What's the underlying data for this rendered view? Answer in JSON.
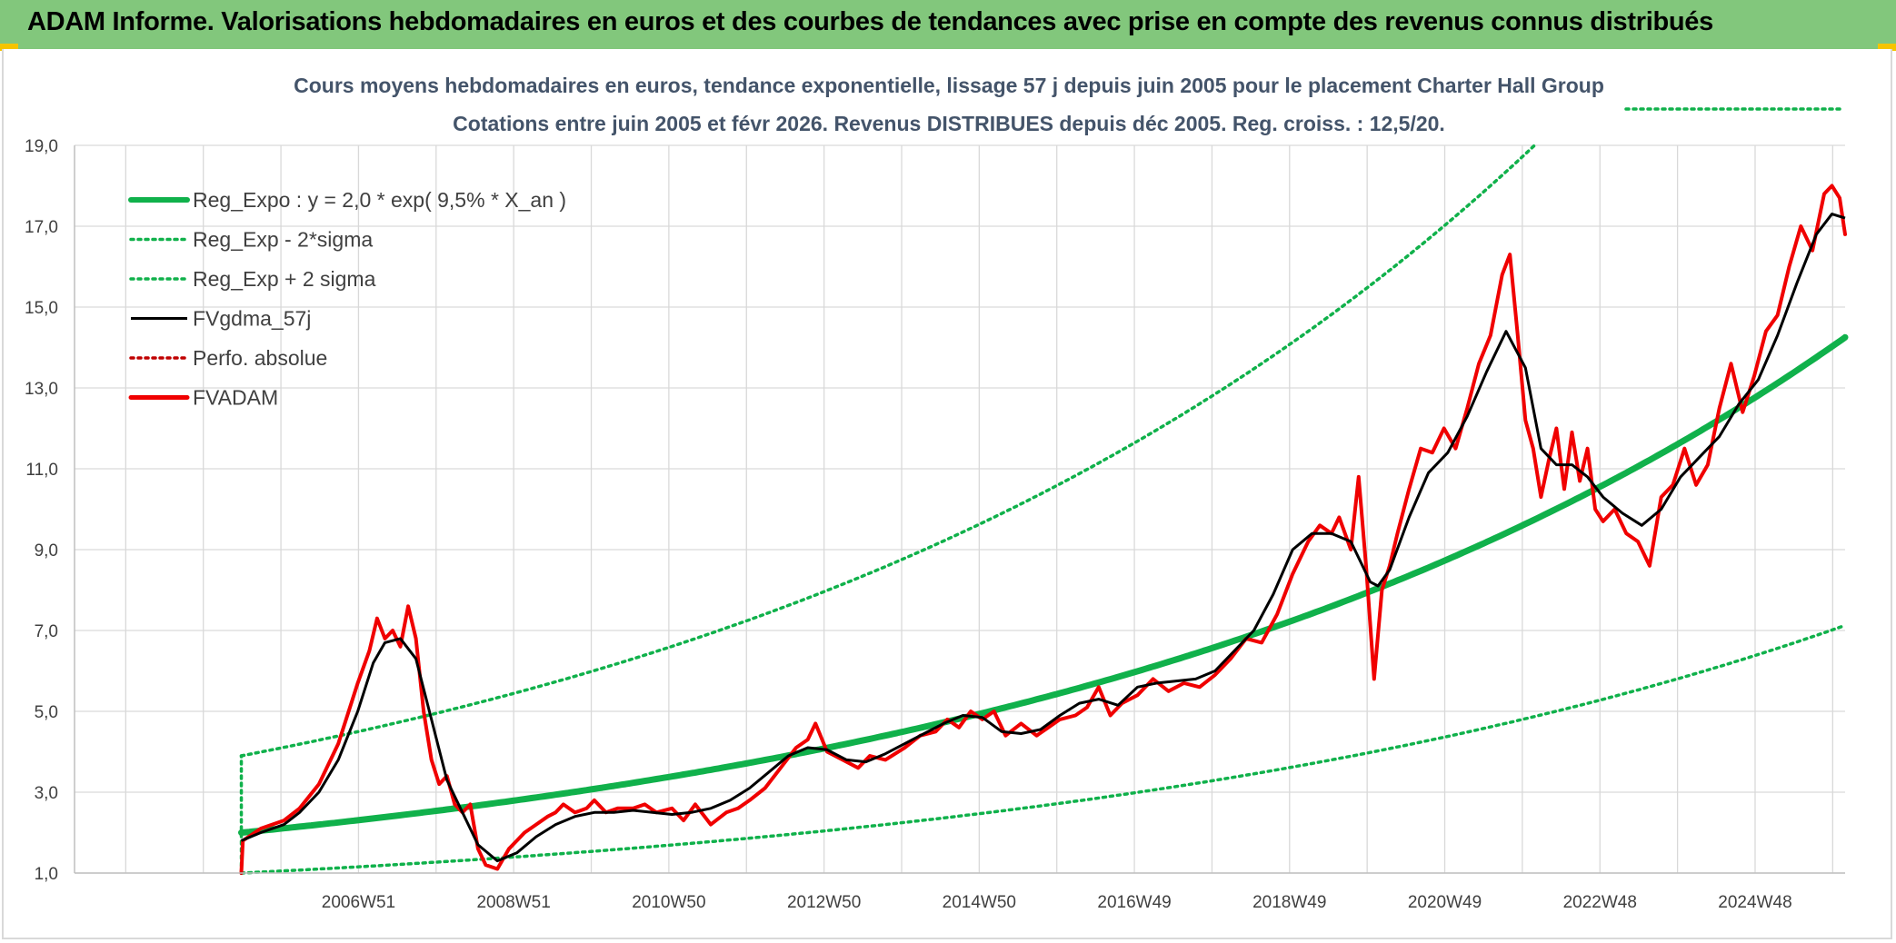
{
  "header": {
    "title": "ADAM Informe. Valorisations hebdomadaires en euros et des courbes de tendances avec prise en compte des revenus connus distribués",
    "color": "#82c77c"
  },
  "chart_data": {
    "type": "line",
    "title": "Cours moyens hebdomadaires en euros, tendance exponentielle, lissage 57 j depuis juin 2005 pour le placement Charter Hall Group",
    "subtitle": "Cotations entre juin 2005 et févr 2026. Revenus DISTRIBUES depuis déc 2005. Reg. croiss. : 12,5/20.",
    "xlabel": "",
    "ylabel": "",
    "ylim": [
      1.0,
      19.0
    ],
    "xlim": [
      2003.3,
      2026.12
    ],
    "grid": true,
    "legend_position": "top-left",
    "y_ticks": [
      "1,0",
      "3,0",
      "5,0",
      "7,0",
      "9,0",
      "11,0",
      "13,0",
      "15,0",
      "17,0",
      "19,0"
    ],
    "y_tick_values": [
      1,
      3,
      5,
      7,
      9,
      11,
      13,
      15,
      17,
      19
    ],
    "x_ticks": [
      "2006W51",
      "2008W51",
      "2010W50",
      "2012W50",
      "2014W50",
      "2016W49",
      "2018W49",
      "2020W49",
      "2022W48",
      "2024W48"
    ],
    "x_tick_years": [
      2006.96,
      2008.96,
      2010.96,
      2012.96,
      2014.96,
      2016.96,
      2018.96,
      2020.96,
      2022.96,
      2024.96
    ],
    "series": [
      {
        "name": "Reg_Expo : y = 2,0 * exp( 9,5% *  X_an )",
        "color": "#10b14b",
        "style": "solid-thick",
        "formula": {
          "a": 2.0,
          "r": 0.095,
          "x0": 2005.45,
          "factor": 1.0
        },
        "x_start": 2005.45,
        "x_end": 2026.12
      },
      {
        "name": "Reg_Exp - 2*sigma",
        "color": "#10b14b",
        "style": "dotted",
        "formula": {
          "a": 2.0,
          "r": 0.095,
          "x0": 2005.45,
          "factor": 0.5
        },
        "x_start": 2005.45,
        "x_end": 2026.12
      },
      {
        "name": "Reg_Exp + 2 sigma",
        "color": "#10b14b",
        "style": "dotted",
        "formula": {
          "a": 2.0,
          "r": 0.095,
          "x0": 2005.45,
          "factor": 1.95
        },
        "x_start": 2005.45,
        "x_end": 2026.12,
        "cap": 19.9
      },
      {
        "name": "FVgdma_57j",
        "color": "#000000",
        "style": "solid",
        "x": [
          2005.45,
          2005.7,
          2006.0,
          2006.2,
          2006.45,
          2006.7,
          2006.95,
          2007.15,
          2007.3,
          2007.5,
          2007.7,
          2007.9,
          2008.1,
          2008.3,
          2008.5,
          2008.75,
          2009.0,
          2009.25,
          2009.5,
          2009.75,
          2010.0,
          2010.25,
          2010.5,
          2010.75,
          2011.0,
          2011.25,
          2011.5,
          2011.75,
          2012.0,
          2012.25,
          2012.5,
          2012.75,
          2013.0,
          2013.25,
          2013.5,
          2013.75,
          2014.0,
          2014.25,
          2014.5,
          2014.75,
          2015.0,
          2015.25,
          2015.5,
          2015.75,
          2016.0,
          2016.25,
          2016.5,
          2016.75,
          2017.0,
          2017.25,
          2017.5,
          2017.75,
          2018.0,
          2018.25,
          2018.5,
          2018.75,
          2019.0,
          2019.25,
          2019.5,
          2019.75,
          2020.0,
          2020.1,
          2020.25,
          2020.5,
          2020.75,
          2021.0,
          2021.25,
          2021.5,
          2021.75,
          2022.0,
          2022.2,
          2022.4,
          2022.6,
          2022.8,
          2023.0,
          2023.25,
          2023.5,
          2023.75,
          2024.0,
          2024.25,
          2024.5,
          2024.75,
          2025.0,
          2025.25,
          2025.5,
          2025.75,
          2025.95,
          2026.12
        ],
        "y": [
          1.8,
          2.0,
          2.2,
          2.5,
          3.0,
          3.8,
          5.0,
          6.2,
          6.7,
          6.8,
          6.3,
          4.8,
          3.3,
          2.5,
          1.7,
          1.3,
          1.5,
          1.9,
          2.2,
          2.4,
          2.5,
          2.5,
          2.55,
          2.5,
          2.45,
          2.5,
          2.6,
          2.8,
          3.1,
          3.5,
          3.9,
          4.1,
          4.05,
          3.8,
          3.75,
          3.95,
          4.2,
          4.45,
          4.7,
          4.9,
          4.85,
          4.5,
          4.45,
          4.55,
          4.9,
          5.2,
          5.3,
          5.15,
          5.6,
          5.7,
          5.75,
          5.8,
          6.0,
          6.5,
          7.0,
          7.9,
          9.0,
          9.4,
          9.4,
          9.2,
          8.2,
          8.1,
          8.5,
          9.8,
          10.9,
          11.4,
          12.3,
          13.4,
          14.4,
          13.5,
          11.5,
          11.1,
          11.1,
          10.8,
          10.3,
          9.9,
          9.6,
          10.0,
          10.8,
          11.3,
          11.8,
          12.6,
          13.2,
          14.3,
          15.6,
          16.8,
          17.3,
          17.2
        ]
      },
      {
        "name": "Perfo. absolue",
        "color": "#c00000",
        "style": "dotted",
        "x": [
          2005.45,
          2005.45
        ],
        "y": [
          1.0,
          1.0
        ]
      },
      {
        "name": "FVADAM",
        "color": "#f00000",
        "style": "solid-thick",
        "x": [
          2005.45,
          2005.47,
          2005.7,
          2006.0,
          2006.2,
          2006.45,
          2006.7,
          2006.95,
          2007.1,
          2007.2,
          2007.3,
          2007.4,
          2007.5,
          2007.6,
          2007.7,
          2007.8,
          2007.9,
          2008.0,
          2008.1,
          2008.2,
          2008.3,
          2008.4,
          2008.5,
          2008.6,
          2008.75,
          2008.9,
          2009.0,
          2009.1,
          2009.25,
          2009.4,
          2009.5,
          2009.6,
          2009.75,
          2009.9,
          2010.0,
          2010.15,
          2010.3,
          2010.5,
          2010.65,
          2010.8,
          2011.0,
          2011.15,
          2011.3,
          2011.5,
          2011.7,
          2011.85,
          2012.0,
          2012.2,
          2012.4,
          2012.6,
          2012.75,
          2012.85,
          2013.0,
          2013.2,
          2013.4,
          2013.55,
          2013.75,
          2014.0,
          2014.2,
          2014.4,
          2014.55,
          2014.7,
          2014.85,
          2015.0,
          2015.15,
          2015.3,
          2015.5,
          2015.7,
          2015.85,
          2016.0,
          2016.2,
          2016.35,
          2016.5,
          2016.65,
          2016.8,
          2017.0,
          2017.2,
          2017.4,
          2017.6,
          2017.8,
          2018.0,
          2018.2,
          2018.4,
          2018.6,
          2018.8,
          2019.0,
          2019.2,
          2019.35,
          2019.5,
          2019.6,
          2019.75,
          2019.85,
          2019.95,
          2020.05,
          2020.15,
          2020.25,
          2020.35,
          2020.5,
          2020.65,
          2020.8,
          2020.95,
          2021.1,
          2021.25,
          2021.4,
          2021.55,
          2021.7,
          2021.8,
          2021.9,
          2022.0,
          2022.1,
          2022.2,
          2022.3,
          2022.4,
          2022.5,
          2022.6,
          2022.7,
          2022.8,
          2022.9,
          2023.0,
          2023.15,
          2023.3,
          2023.45,
          2023.6,
          2023.75,
          2023.9,
          2024.05,
          2024.2,
          2024.35,
          2024.5,
          2024.65,
          2024.8,
          2024.95,
          2025.1,
          2025.25,
          2025.4,
          2025.55,
          2025.7,
          2025.85,
          2025.95,
          2026.05,
          2026.12
        ],
        "y": [
          1.0,
          1.8,
          2.1,
          2.3,
          2.6,
          3.2,
          4.2,
          5.7,
          6.5,
          7.3,
          6.8,
          7.0,
          6.6,
          7.6,
          6.8,
          5.0,
          3.8,
          3.2,
          3.4,
          2.7,
          2.5,
          2.7,
          1.6,
          1.2,
          1.1,
          1.6,
          1.8,
          2.0,
          2.2,
          2.4,
          2.5,
          2.7,
          2.5,
          2.6,
          2.8,
          2.5,
          2.6,
          2.6,
          2.7,
          2.5,
          2.6,
          2.3,
          2.7,
          2.2,
          2.5,
          2.6,
          2.8,
          3.1,
          3.6,
          4.1,
          4.3,
          4.7,
          4.0,
          3.8,
          3.6,
          3.9,
          3.8,
          4.1,
          4.4,
          4.5,
          4.8,
          4.6,
          5.0,
          4.8,
          5.0,
          4.4,
          4.7,
          4.4,
          4.6,
          4.8,
          4.9,
          5.1,
          5.6,
          4.9,
          5.2,
          5.4,
          5.8,
          5.5,
          5.7,
          5.6,
          5.9,
          6.3,
          6.8,
          6.7,
          7.4,
          8.4,
          9.2,
          9.6,
          9.4,
          9.8,
          9.0,
          10.8,
          8.5,
          5.8,
          8.0,
          8.6,
          9.4,
          10.5,
          11.5,
          11.4,
          12.0,
          11.5,
          12.5,
          13.6,
          14.3,
          15.8,
          16.3,
          14.3,
          12.2,
          11.5,
          10.3,
          11.2,
          12.0,
          10.5,
          11.9,
          10.7,
          11.5,
          10.0,
          9.7,
          10.0,
          9.4,
          9.2,
          8.6,
          10.3,
          10.6,
          11.5,
          10.6,
          11.1,
          12.5,
          13.6,
          12.4,
          13.3,
          14.4,
          14.8,
          16.0,
          17.0,
          16.4,
          17.8,
          18.0,
          17.7,
          16.8
        ]
      }
    ]
  }
}
